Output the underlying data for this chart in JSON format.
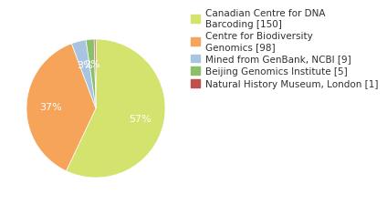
{
  "labels": [
    "Canadian Centre for DNA\nBarcoding [150]",
    "Centre for Biodiversity\nGenomics [98]",
    "Mined from GenBank, NCBI [9]",
    "Beijing Genomics Institute [5]",
    "Natural History Museum, London [1]"
  ],
  "values": [
    150,
    98,
    9,
    5,
    1
  ],
  "colors": [
    "#d4e26e",
    "#f5a45a",
    "#a8c4e0",
    "#8bbf6a",
    "#c0504d"
  ],
  "background_color": "#ffffff",
  "text_color": "#303030",
  "startangle": 90,
  "pct_fontsize": 8,
  "legend_fontsize": 7.5
}
